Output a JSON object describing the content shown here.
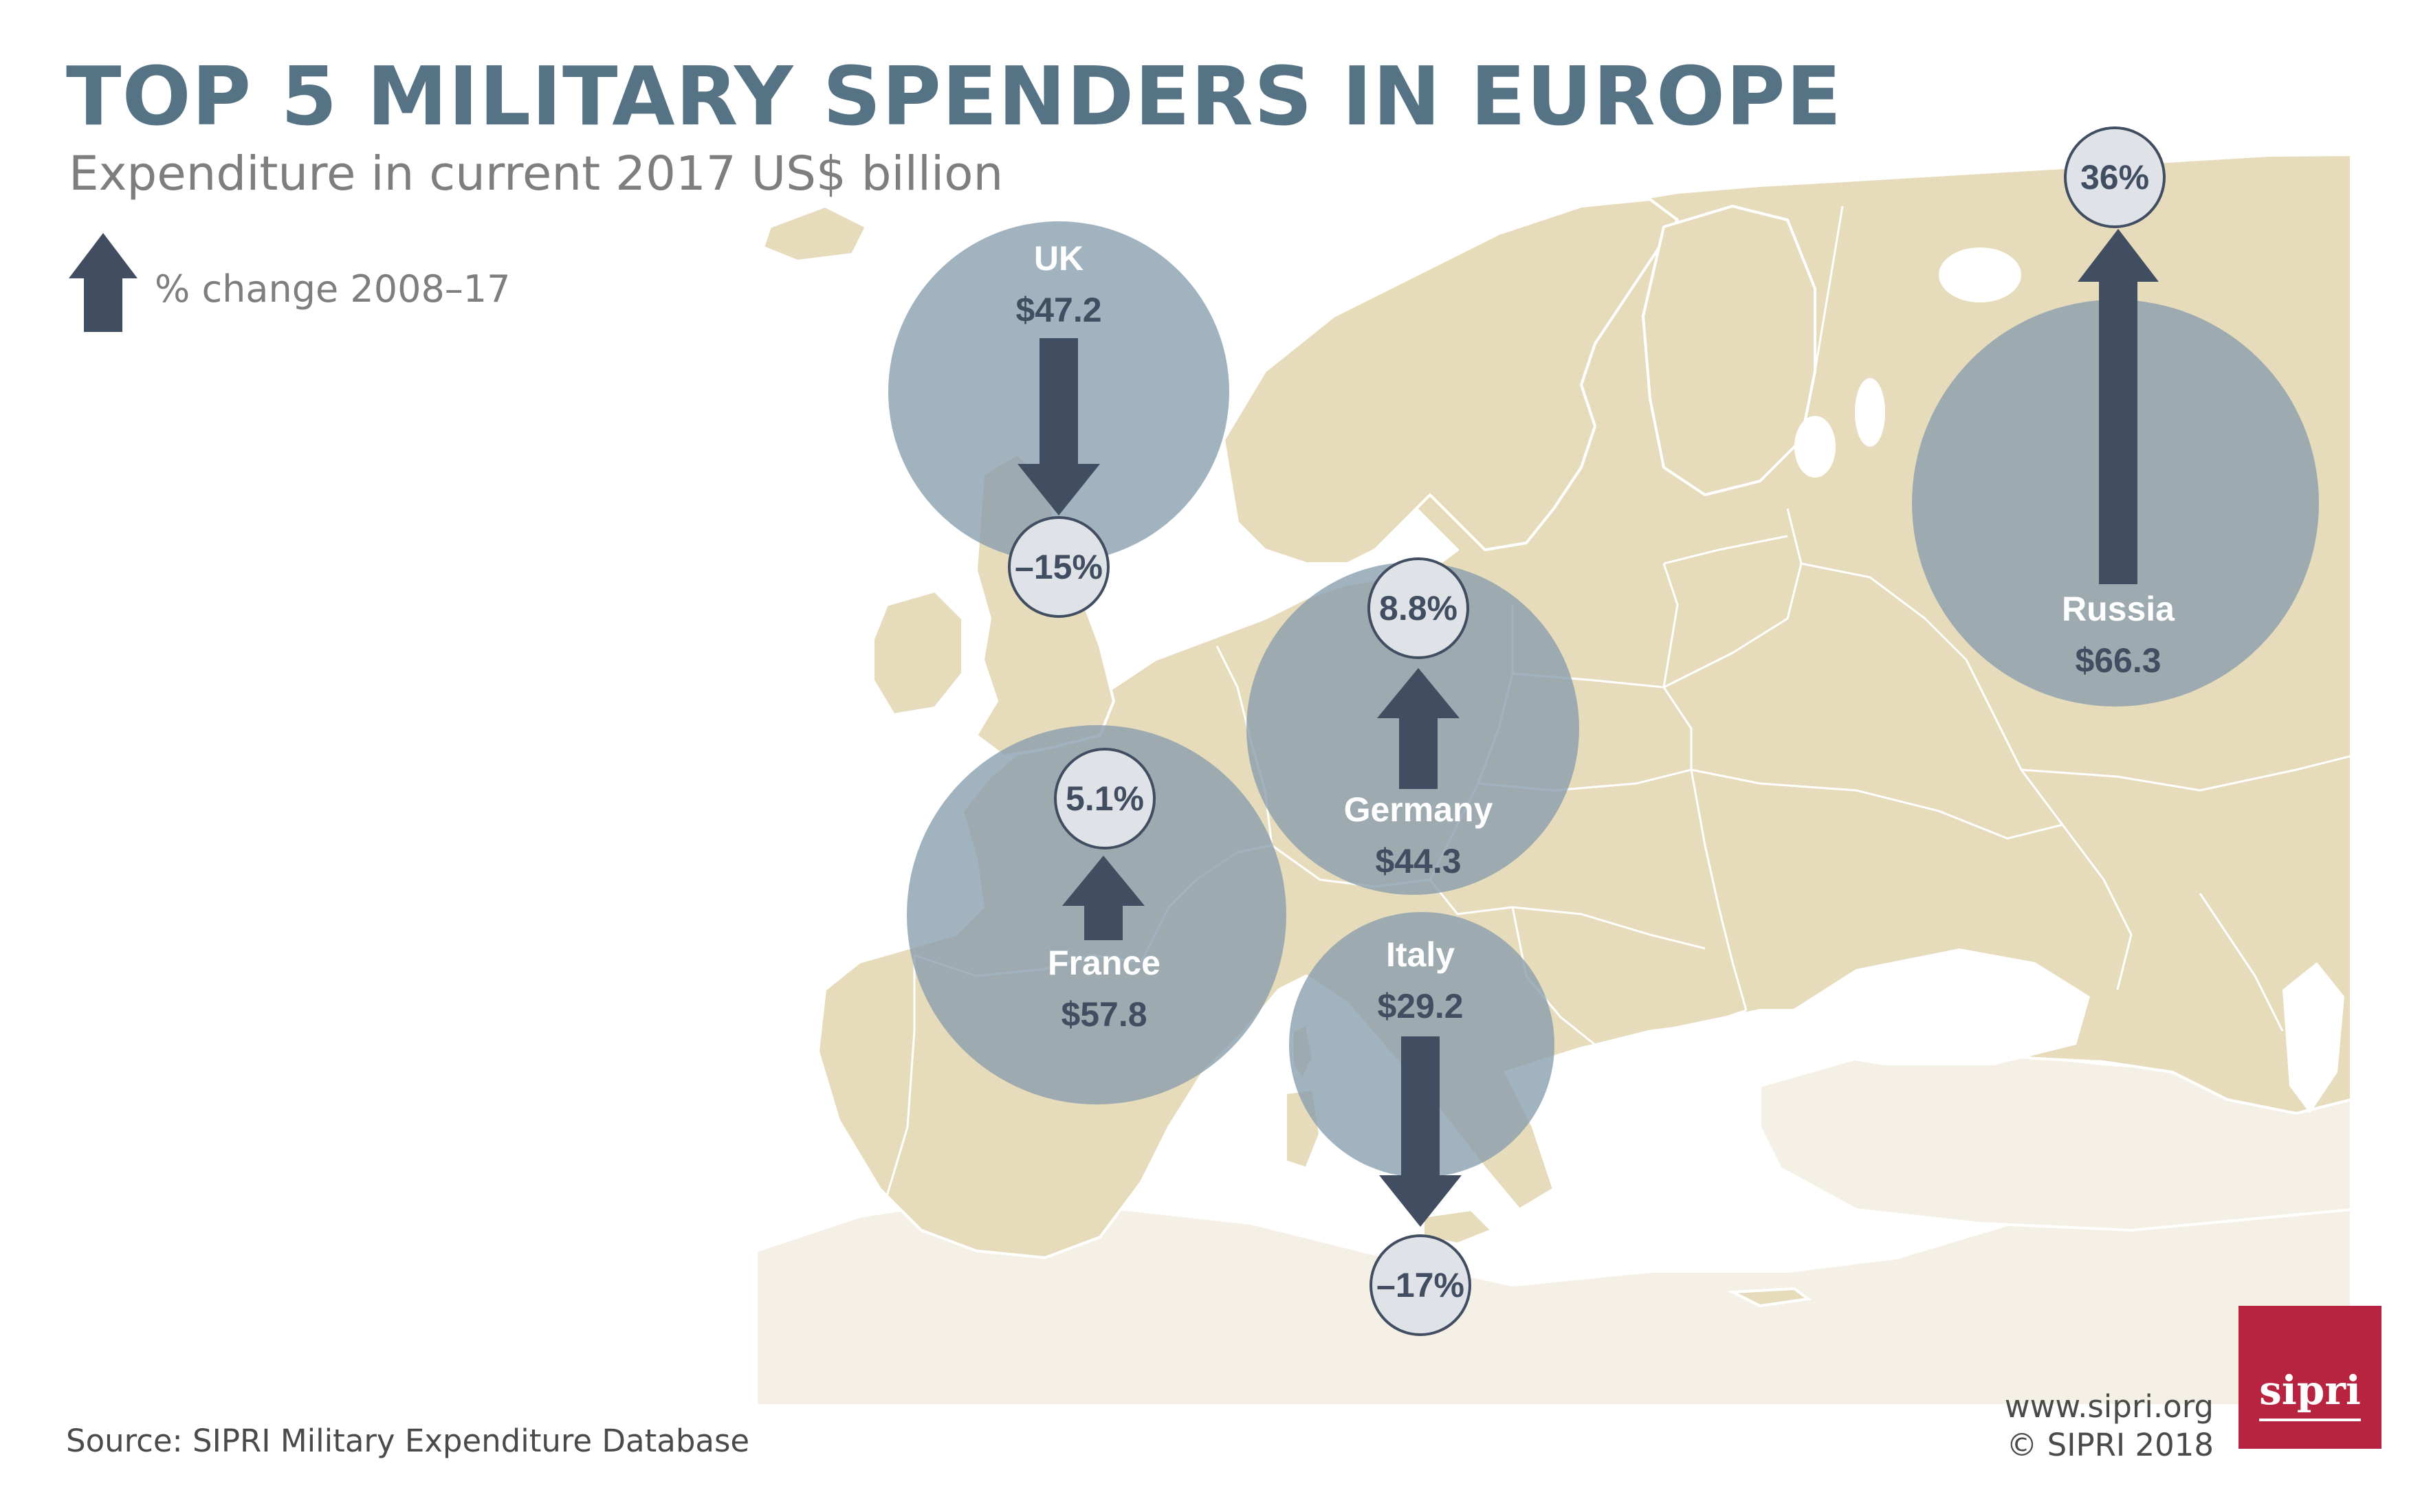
{
  "title": "TOP 5 MILITARY SPENDERS IN EUROPE",
  "subtitle": "Expenditure in current 2017 US$ billion",
  "legend": {
    "label": "% change 2008–17",
    "icon": "up-arrow-icon"
  },
  "source": "Source: SIPRI Military Expenditure Database",
  "credits": {
    "website": "www.sipri.org",
    "copyright": "© SIPRI 2018"
  },
  "logo": {
    "text": "sipri"
  },
  "colors": {
    "title": "#557384",
    "land": "#e6dcbc",
    "bubble": "#889dae",
    "arrow": "#414d60",
    "badge_fill": "#dfe3e7",
    "logo": "#b8233f"
  },
  "countries": [
    {
      "name": "UK",
      "expenditure_label": "$47.2",
      "expenditure_usd_bn": 47.2,
      "change_label": "–15%",
      "change_pct": -15,
      "direction": "down"
    },
    {
      "name": "Russia",
      "expenditure_label": "$66.3",
      "expenditure_usd_bn": 66.3,
      "change_label": "36%",
      "change_pct": 36,
      "direction": "up"
    },
    {
      "name": "Germany",
      "expenditure_label": "$44.3",
      "expenditure_usd_bn": 44.3,
      "change_label": "8.8%",
      "change_pct": 8.8,
      "direction": "up"
    },
    {
      "name": "France",
      "expenditure_label": "$57.8",
      "expenditure_usd_bn": 57.8,
      "change_label": "5.1%",
      "change_pct": 5.1,
      "direction": "up"
    },
    {
      "name": "Italy",
      "expenditure_label": "$29.2",
      "expenditure_usd_bn": 29.2,
      "change_label": "–17%",
      "change_pct": -17,
      "direction": "down"
    }
  ]
}
